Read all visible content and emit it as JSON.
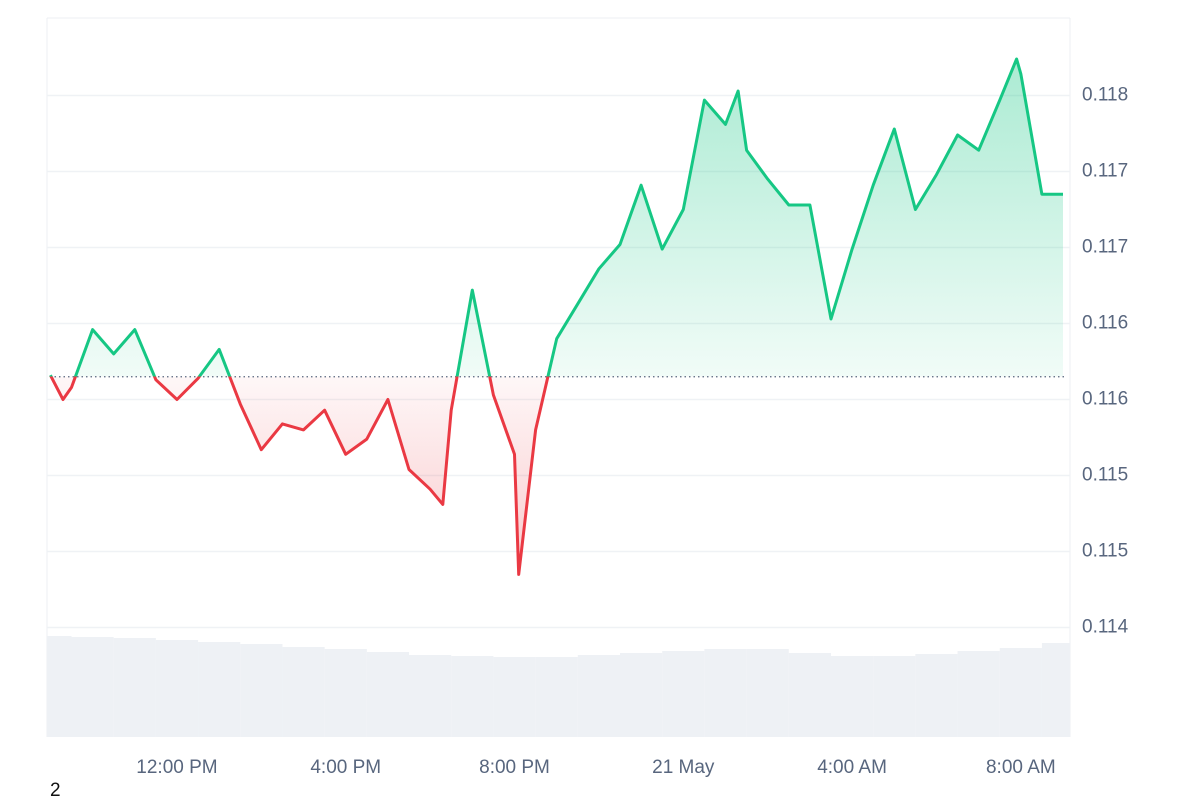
{
  "chart_data": {
    "type": "line",
    "corner_label": "2",
    "xlim": [
      8.92,
      33.07
    ],
    "ylim": [
      0.11378,
      0.11851
    ],
    "xticks": [
      {
        "value": 12,
        "label": "12:00 PM"
      },
      {
        "value": 16,
        "label": "4:00 PM"
      },
      {
        "value": 20,
        "label": "8:00 PM"
      },
      {
        "value": 24,
        "label": "21 May"
      },
      {
        "value": 28,
        "label": "4:00 AM"
      },
      {
        "value": 32,
        "label": "8:00 AM"
      }
    ],
    "yticks": [
      {
        "value": 0.118,
        "label": "0.118"
      },
      {
        "value": 0.1175,
        "label": "0.117"
      },
      {
        "value": 0.117,
        "label": "0.117"
      },
      {
        "value": 0.1165,
        "label": "0.116"
      },
      {
        "value": 0.116,
        "label": "0.116"
      },
      {
        "value": 0.1155,
        "label": "0.115"
      },
      {
        "value": 0.115,
        "label": "0.115"
      },
      {
        "value": 0.1145,
        "label": "0.114"
      }
    ],
    "grid": true,
    "baseline": 0.11615,
    "up_color": "#16c784",
    "down_color": "#ea3943",
    "series": [
      {
        "x": [
          9.0,
          9.3,
          9.5,
          10.0,
          10.5,
          11.0,
          11.5,
          12.0,
          12.5,
          13.0,
          13.5,
          14.0,
          14.5,
          15.0,
          15.5,
          16.0,
          16.5,
          17.0,
          17.5,
          18.0,
          18.3,
          18.5,
          19.0,
          19.5,
          20.0,
          20.1,
          20.5,
          21.0,
          21.5,
          22.0,
          22.5,
          23.0,
          23.5,
          24.0,
          24.5,
          25.0,
          25.3,
          25.5,
          26.0,
          26.5,
          27.0,
          27.5,
          28.0,
          28.5,
          29.0,
          29.5,
          30.0,
          30.5,
          31.0,
          31.5,
          31.9,
          32.0,
          32.5,
          33.0
        ],
        "values": [
          0.11616,
          0.116,
          0.11608,
          0.11646,
          0.1163,
          0.11646,
          0.11613,
          0.116,
          0.11614,
          0.11633,
          0.11597,
          0.11567,
          0.11584,
          0.1158,
          0.11593,
          0.11564,
          0.11574,
          0.116,
          0.11554,
          0.11541,
          0.11531,
          0.11593,
          0.11672,
          0.11603,
          0.11564,
          0.11485,
          0.1158,
          0.1164,
          0.11663,
          0.11686,
          0.11702,
          0.11741,
          0.11699,
          0.11725,
          0.11797,
          0.11781,
          0.11803,
          0.11764,
          0.11745,
          0.11728,
          0.11728,
          0.11653,
          0.11699,
          0.11741,
          0.11778,
          0.11725,
          0.11748,
          0.11774,
          0.11764,
          0.11797,
          0.11824,
          0.11814,
          0.11735,
          0.11735
        ]
      }
    ],
    "volume": {
      "color": "#eef1f5",
      "ylim": [
        0,
        719
      ],
      "x": [
        9,
        10,
        11,
        12,
        13,
        14,
        15,
        16,
        17,
        18,
        19,
        20,
        21,
        22,
        23,
        24,
        25,
        26,
        27,
        28,
        29,
        30,
        31,
        32,
        33
      ],
      "values": [
        101,
        100,
        99,
        97,
        95,
        93,
        90,
        88,
        85,
        82,
        81,
        80,
        80,
        82,
        84,
        86,
        88,
        88,
        84,
        81,
        81,
        83,
        86,
        89,
        94
      ]
    }
  }
}
